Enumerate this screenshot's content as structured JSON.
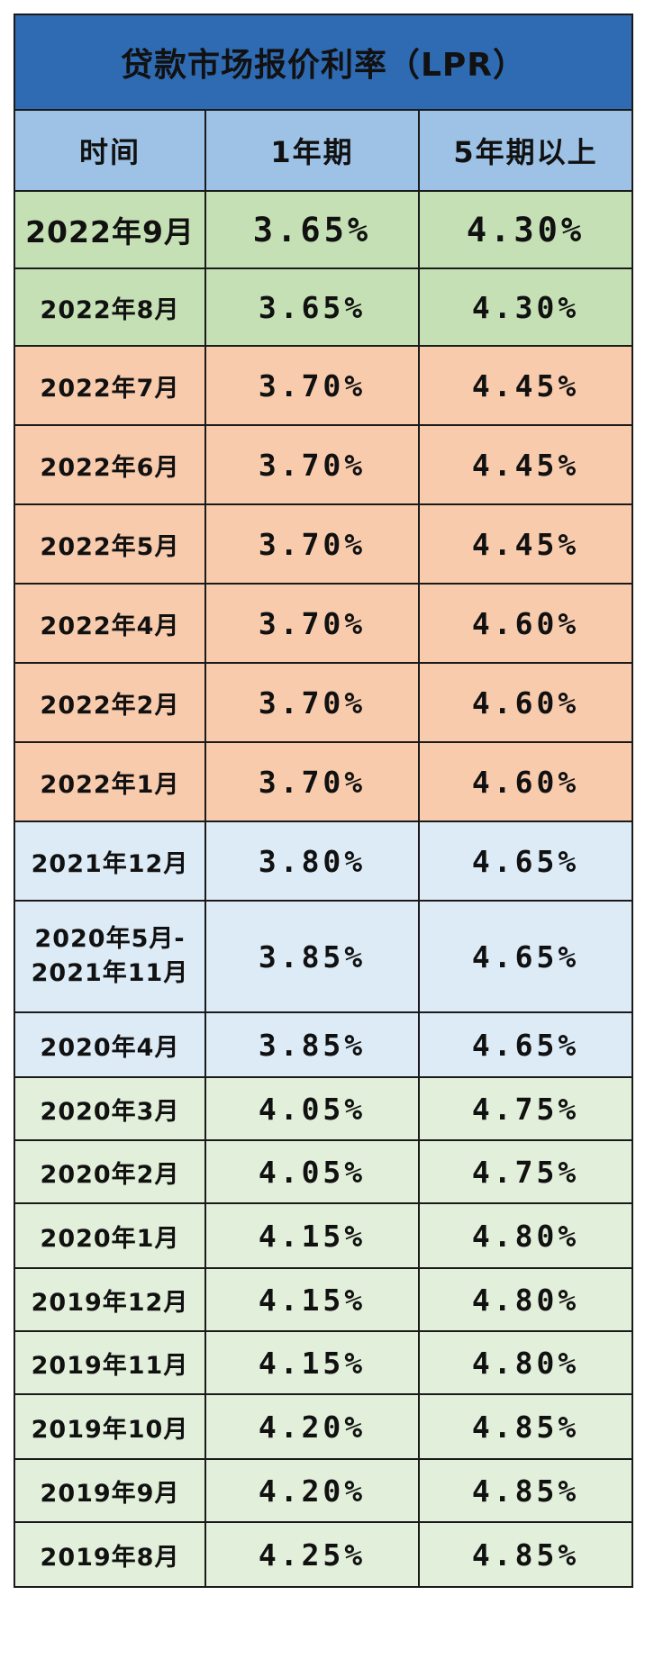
{
  "title": "贷款市场报价利率（LPR）",
  "headers": [
    "时间",
    "1年期",
    "5年期以上"
  ],
  "colors": {
    "title_bg": "#2f6bb3",
    "header_bg": "#9dc2e6",
    "group_green_dark": "#c5e0b4",
    "group_orange": "#f8cbad",
    "group_blue": "#ddebf7",
    "group_green_light": "#e2efda",
    "highlight_text": "#ff0000"
  },
  "rows": [
    {
      "date": "2022年9月",
      "y1": "3.65%",
      "y5": "4.30%",
      "y1_red": false,
      "y5_red": false,
      "group": "green_dark",
      "big": true
    },
    {
      "date": "2022年8月",
      "y1": "3.65%",
      "y5": "4.30%",
      "y1_red": true,
      "y5_red": true,
      "group": "green_dark"
    },
    {
      "date": "2022年7月",
      "y1": "3.70%",
      "y5": "4.45%",
      "y1_red": false,
      "y5_red": false,
      "group": "orange"
    },
    {
      "date": "2022年6月",
      "y1": "3.70%",
      "y5": "4.45%",
      "y1_red": false,
      "y5_red": false,
      "group": "orange"
    },
    {
      "date": "2022年5月",
      "y1": "3.70%",
      "y5": "4.45%",
      "y1_red": false,
      "y5_red": true,
      "group": "orange"
    },
    {
      "date": "2022年4月",
      "y1": "3.70%",
      "y5": "4.60%",
      "y1_red": false,
      "y5_red": false,
      "group": "orange"
    },
    {
      "date": "2022年2月",
      "y1": "3.70%",
      "y5": "4.60%",
      "y1_red": false,
      "y5_red": false,
      "group": "orange"
    },
    {
      "date": "2022年1月",
      "y1": "3.70%",
      "y5": "4.60%",
      "y1_red": true,
      "y5_red": true,
      "group": "orange"
    },
    {
      "date": "2021年12月",
      "y1": "3.80%",
      "y5": "4.65%",
      "y1_red": true,
      "y5_red": false,
      "group": "blue"
    },
    {
      "date": "2020年5月-",
      "date2": "2021年11月",
      "y1": "3.85%",
      "y5": "4.65%",
      "y1_red": false,
      "y5_red": false,
      "group": "blue",
      "tall": true
    },
    {
      "date": "2020年4月",
      "y1": "3.85%",
      "y5": "4.65%",
      "y1_red": true,
      "y5_red": true,
      "group": "blue"
    },
    {
      "date": "2020年3月",
      "y1": "4.05%",
      "y5": "4.75%",
      "y1_red": false,
      "y5_red": false,
      "group": "green_light"
    },
    {
      "date": "2020年2月",
      "y1": "4.05%",
      "y5": "4.75%",
      "y1_red": true,
      "y5_red": true,
      "group": "green_light"
    },
    {
      "date": "2020年1月",
      "y1": "4.15%",
      "y5": "4.80%",
      "y1_red": false,
      "y5_red": false,
      "group": "green_light"
    },
    {
      "date": "2019年12月",
      "y1": "4.15%",
      "y5": "4.80%",
      "y1_red": false,
      "y5_red": false,
      "group": "green_light"
    },
    {
      "date": "2019年11月",
      "y1": "4.15%",
      "y5": "4.80%",
      "y1_red": true,
      "y5_red": true,
      "group": "green_light"
    },
    {
      "date": "2019年10月",
      "y1": "4.20%",
      "y5": "4.85%",
      "y1_red": false,
      "y5_red": false,
      "group": "green_light"
    },
    {
      "date": "2019年9月",
      "y1": "4.20%",
      "y5": "4.85%",
      "y1_red": true,
      "y5_red": false,
      "group": "green_light"
    },
    {
      "date": "2019年8月",
      "y1": "4.25%",
      "y5": "4.85%",
      "y1_red": false,
      "y5_red": false,
      "group": "green_light"
    }
  ]
}
